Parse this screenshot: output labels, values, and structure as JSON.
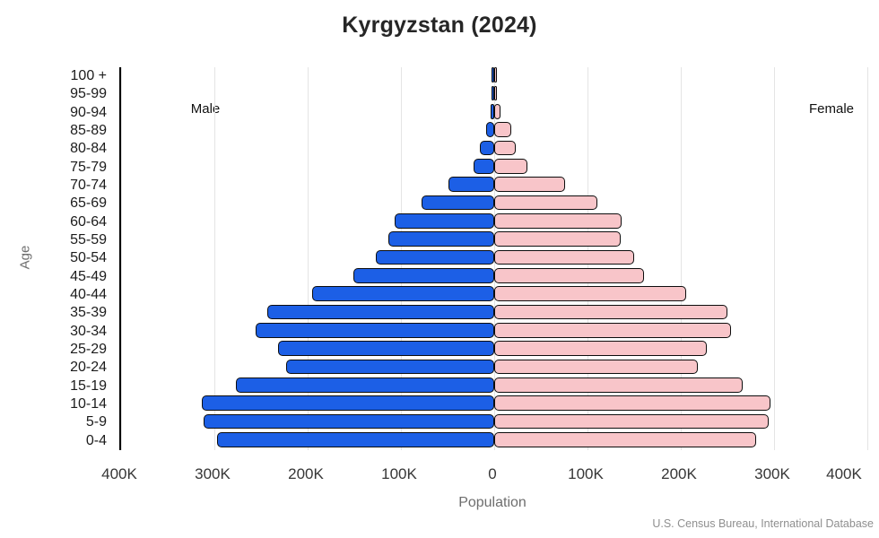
{
  "chart_data": {
    "type": "bar",
    "subtype": "population-pyramid",
    "title": "Kyrgyzstan (2024)",
    "xlabel": "Population",
    "ylabel": "Age",
    "source": "U.S. Census Bureau, International Database",
    "grid": true,
    "xmax": 400000,
    "xticks": {
      "values": [
        -400000,
        -300000,
        -200000,
        -100000,
        0,
        100000,
        200000,
        300000,
        400000
      ],
      "labels": [
        "400K",
        "300K",
        "200K",
        "100K",
        "0",
        "100K",
        "200K",
        "300K",
        "400K"
      ]
    },
    "ages": [
      "0-4",
      "5-9",
      "10-14",
      "15-19",
      "20-24",
      "25-29",
      "30-34",
      "35-39",
      "40-44",
      "45-49",
      "50-54",
      "55-59",
      "60-64",
      "65-69",
      "70-74",
      "75-79",
      "80-84",
      "85-89",
      "90-94",
      "95-99",
      "100 +"
    ],
    "series": [
      {
        "name": "Male",
        "side": "left",
        "color": "#1c5fe6",
        "values": [
          297000,
          312000,
          313000,
          277000,
          223000,
          232000,
          256000,
          243000,
          195000,
          151000,
          127000,
          113000,
          107000,
          78000,
          49000,
          22000,
          15000,
          9000,
          4000,
          1000,
          400
        ]
      },
      {
        "name": "Female",
        "side": "right",
        "color": "#f8c5c9",
        "values": [
          281000,
          294000,
          296000,
          266000,
          218000,
          228000,
          254000,
          250000,
          206000,
          161000,
          150000,
          136000,
          137000,
          111000,
          76000,
          36000,
          23000,
          18000,
          7000,
          2000,
          700
        ]
      }
    ],
    "colors": {
      "outline": "#0d0d0d",
      "gridline": "#e4e4e4"
    },
    "legend_position": "inside-top"
  }
}
